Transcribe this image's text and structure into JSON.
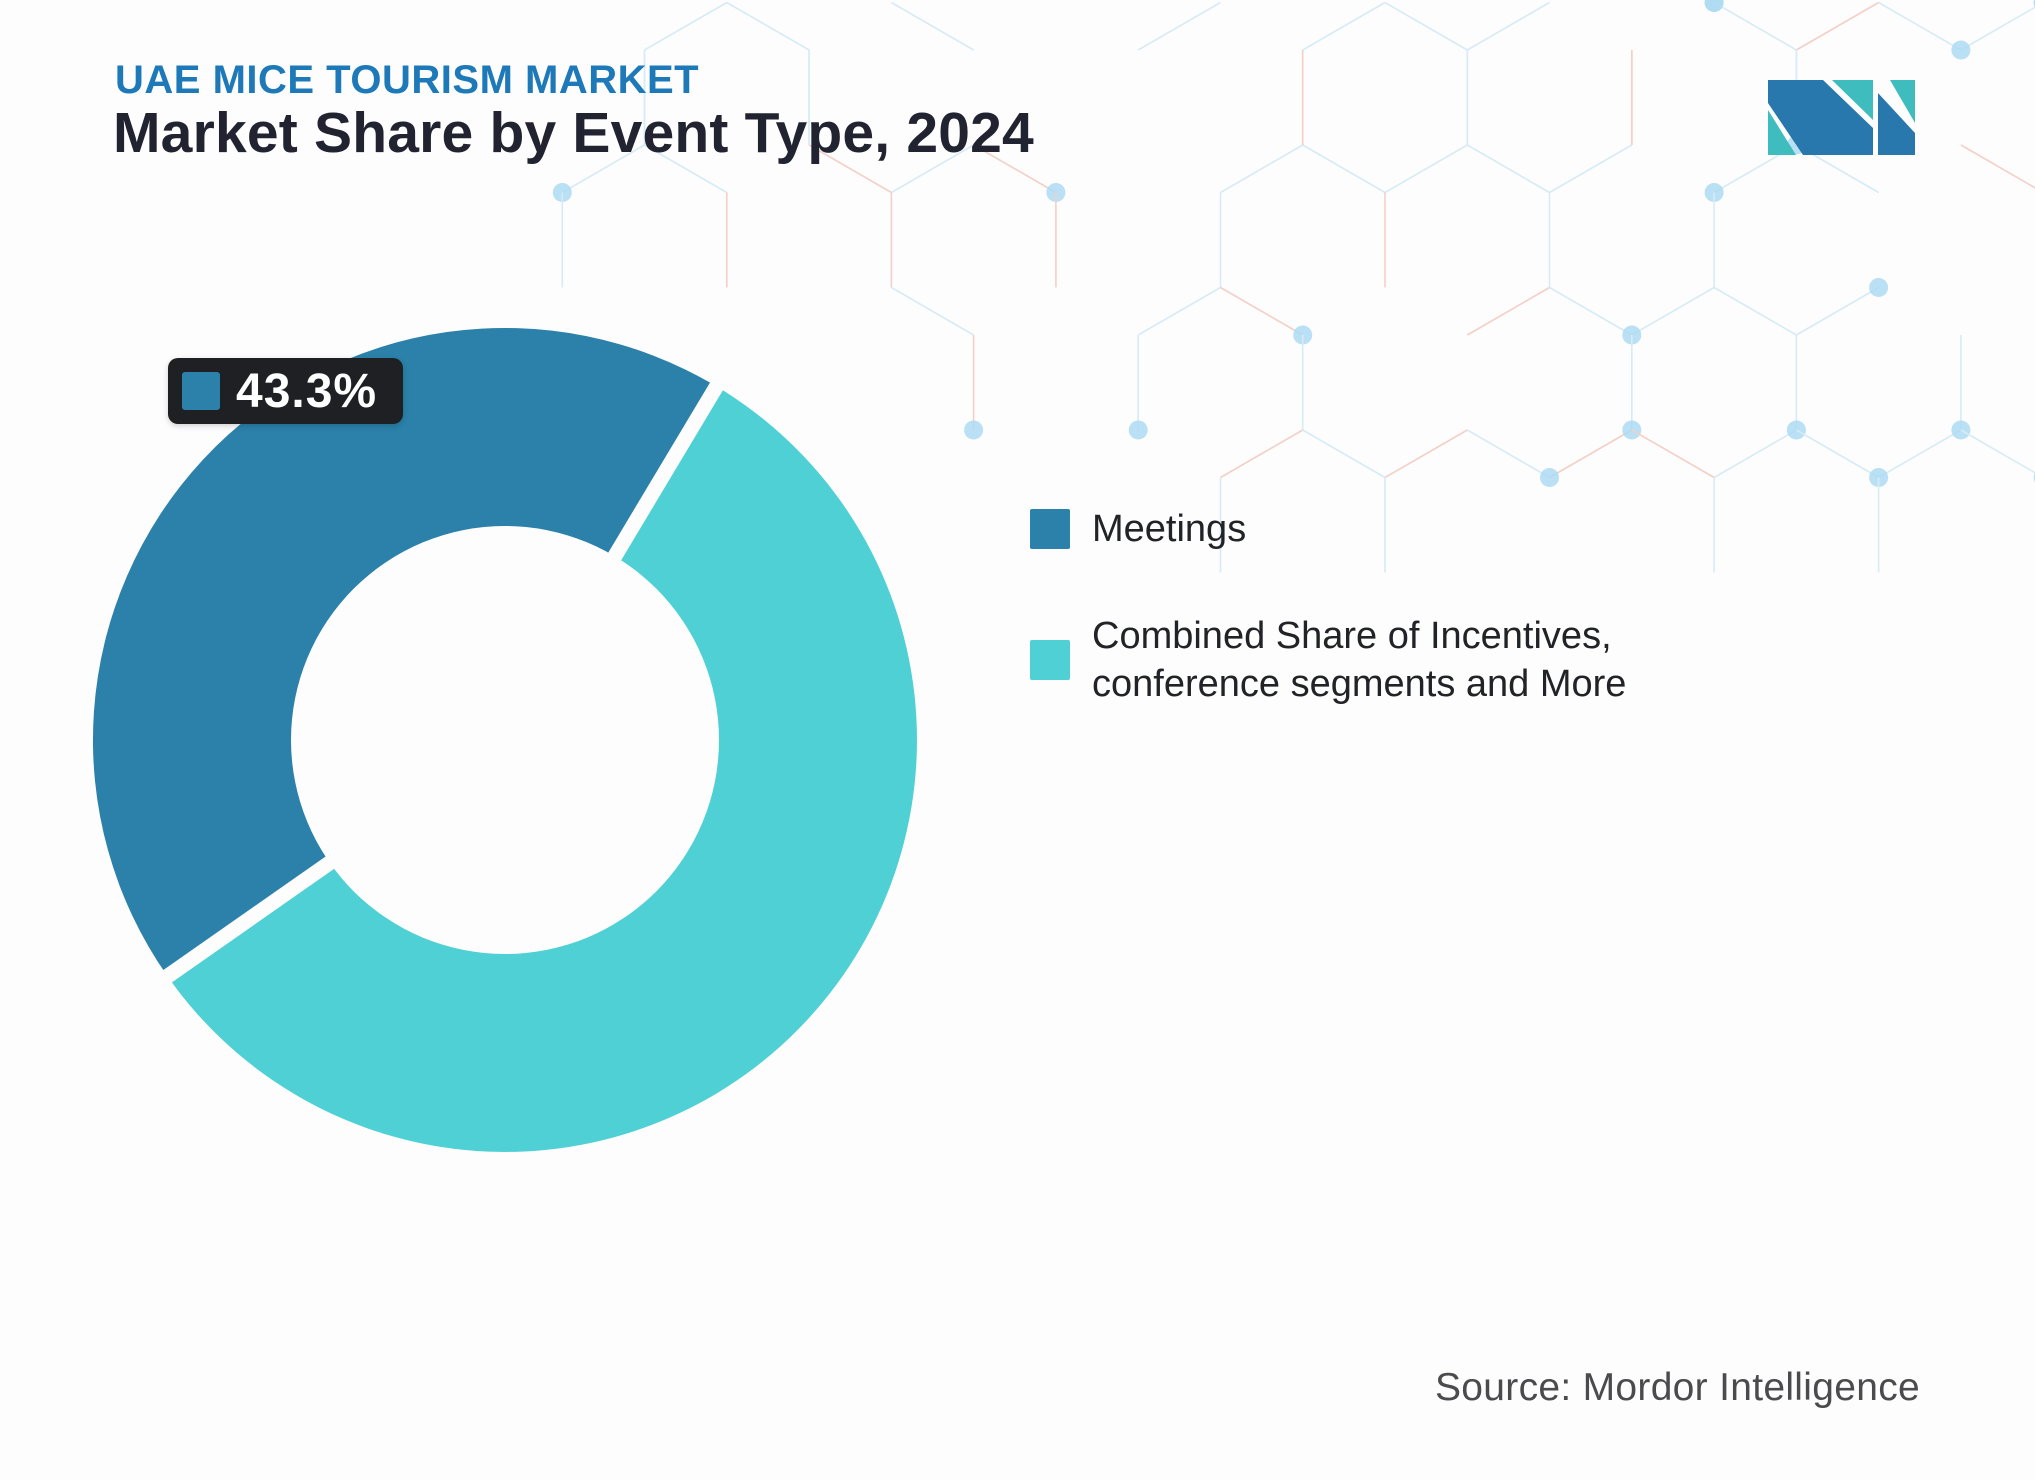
{
  "header": {
    "eyebrow": "UAE MICE TOURISM MARKET",
    "title": "Market Share by Event Type, 2024"
  },
  "brand": {
    "logo_name": "Mordor Intelligence",
    "logo_blue": "#2878AE",
    "logo_teal": "#3FBCBE"
  },
  "chart_data": {
    "type": "pie",
    "donut": true,
    "title": "Market Share by Event Type, 2024",
    "unit": "%",
    "series": [
      {
        "name": "Meetings",
        "value": 43.3,
        "color": "#2B81A9"
      },
      {
        "name": "Combined Share of Incentives, conference segments and More",
        "value": 56.7,
        "color": "#4FD0D4"
      }
    ],
    "rotation_deg": 235,
    "inner_radius_ratio": 0.52,
    "data_label": "43.3%",
    "legend_position": "right"
  },
  "footer": {
    "source": "Source: Mordor Intelligence"
  },
  "colors": {
    "eyebrow": "#1D79B8",
    "title": "#212430",
    "callout_bg": "#1F2024",
    "callout_text": "#FFFFFF"
  }
}
